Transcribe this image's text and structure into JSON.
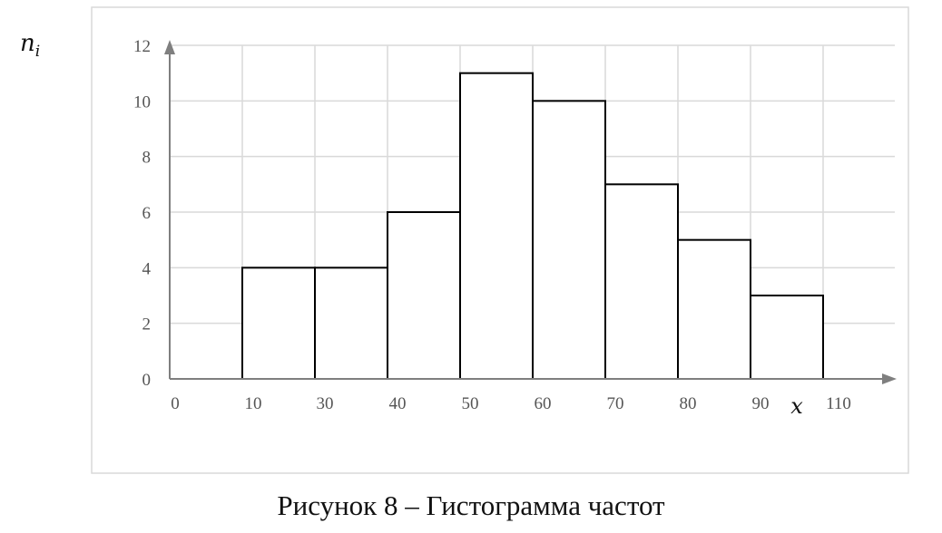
{
  "caption": "Рисунок 8 – Гистограмма частот",
  "chart_data": {
    "type": "bar",
    "title": "",
    "xlabel": "x",
    "ylabel": "n_i",
    "ylabel_main": "n",
    "ylabel_sub": "i",
    "ylim": [
      0,
      12
    ],
    "yticks": [
      0,
      2,
      4,
      6,
      8,
      10,
      12
    ],
    "x_tick_labels": [
      "0",
      "10",
      "30",
      "40",
      "50",
      "60",
      "70",
      "80",
      "90",
      "110"
    ],
    "bins": [
      {
        "from": "10",
        "to": "30",
        "value": 4
      },
      {
        "from": "30",
        "to": "40",
        "value": 4
      },
      {
        "from": "40",
        "to": "50",
        "value": 6
      },
      {
        "from": "50",
        "to": "60",
        "value": 11
      },
      {
        "from": "60",
        "to": "70",
        "value": 10
      },
      {
        "from": "70",
        "to": "80",
        "value": 7
      },
      {
        "from": "80",
        "to": "90",
        "value": 5
      },
      {
        "from": "90",
        "to": "110",
        "value": 3
      }
    ],
    "values": [
      4,
      4,
      6,
      11,
      10,
      7,
      5,
      3
    ],
    "grid": true,
    "legend": "none",
    "colors": {
      "bar_fill": "#ffffff",
      "bar_stroke": "#000000",
      "grid": "#d9d9d9",
      "axis": "#7f7f7f",
      "frame": "#d9d9d9"
    }
  }
}
